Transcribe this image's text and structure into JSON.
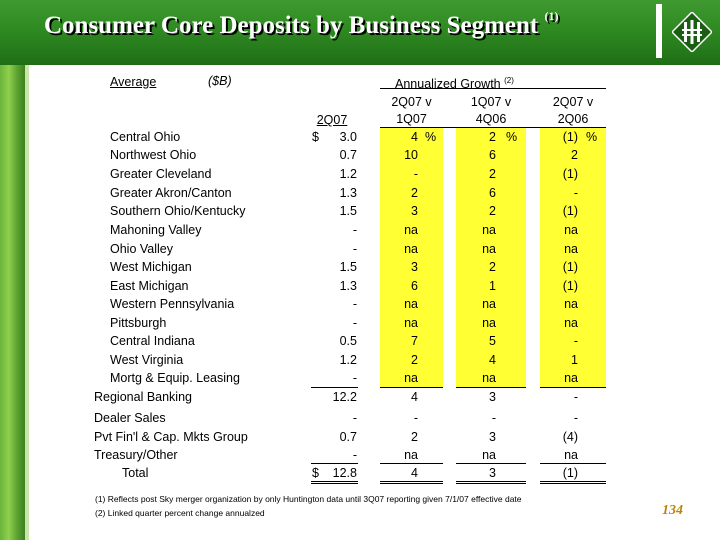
{
  "title": "Consumer Core Deposits by Business Segment",
  "title_note": "(1)",
  "header": {
    "average": "Average",
    "unit": "($B)",
    "growth_label": "Annualized Growth",
    "growth_note": "(2)",
    "col_2q07": "2Q07",
    "col_a_line1": "2Q07 v",
    "col_a_line2": "1Q07",
    "col_b_line1": "1Q07 v",
    "col_b_line2": "4Q06",
    "col_c_line1": "2Q07 v",
    "col_c_line2": "2Q06"
  },
  "rows": [
    {
      "label": "Central Ohio",
      "indent": true,
      "dollar": "$",
      "v": "3.0",
      "a": "4",
      "ap": "%",
      "b": "2",
      "bp": "%",
      "c": "(1)",
      "cp": "%"
    },
    {
      "label": "Northwest Ohio",
      "indent": true,
      "v": "0.7",
      "a": "10",
      "b": "6",
      "c": "2"
    },
    {
      "label": "Greater Cleveland",
      "indent": true,
      "v": "1.2",
      "a": "-",
      "b": "2",
      "c": "(1)"
    },
    {
      "label": "Greater Akron/Canton",
      "indent": true,
      "v": "1.3",
      "a": "2",
      "b": "6",
      "c": "-"
    },
    {
      "label": "Southern Ohio/Kentucky",
      "indent": true,
      "v": "1.5",
      "a": "3",
      "b": "2",
      "c": "(1)"
    },
    {
      "label": "Mahoning Valley",
      "indent": true,
      "v": "-",
      "a": "na",
      "b": "na",
      "c": "na"
    },
    {
      "label": "Ohio Valley",
      "indent": true,
      "v": "-",
      "a": "na",
      "b": "na",
      "c": "na"
    },
    {
      "label": "West Michigan",
      "indent": true,
      "v": "1.5",
      "a": "3",
      "b": "2",
      "c": "(1)"
    },
    {
      "label": "East Michigan",
      "indent": true,
      "v": "1.3",
      "a": "6",
      "b": "1",
      "c": "(1)"
    },
    {
      "label": "Western Pennsylvania",
      "indent": true,
      "v": "-",
      "a": "na",
      "b": "na",
      "c": "na"
    },
    {
      "label": "Pittsburgh",
      "indent": true,
      "v": "-",
      "a": "na",
      "b": "na",
      "c": "na"
    },
    {
      "label": "Central Indiana",
      "indent": true,
      "v": "0.5",
      "a": "7",
      "b": "5",
      "c": "-"
    },
    {
      "label": "West Virginia",
      "indent": true,
      "v": "1.2",
      "a": "2",
      "b": "4",
      "c": "1"
    },
    {
      "label": "Mortg & Equip. Leasing",
      "indent": true,
      "v": "-",
      "a": "na",
      "b": "na",
      "c": "na"
    },
    {
      "label": "Regional Banking",
      "indent": false,
      "v": "12.2",
      "a": "4",
      "b": "3",
      "c": "-"
    },
    {
      "label": "Dealer Sales",
      "indent": false,
      "v": "-",
      "a": "-",
      "b": "-",
      "c": "-"
    },
    {
      "label": "Pvt Fin'l & Cap. Mkts Group",
      "indent": false,
      "v": "0.7",
      "a": "2",
      "b": "3",
      "c": "(4)"
    },
    {
      "label": "Treasury/Other",
      "indent": false,
      "v": "-",
      "a": "na",
      "b": "na",
      "c": "na"
    },
    {
      "label": "Total",
      "indent": "total",
      "dollar": "$",
      "v": "12.8",
      "a": "4",
      "b": "3",
      "c": "(1)"
    }
  ],
  "footnotes": [
    "(1)  Reflects post Sky merger organization by only Huntington data until 3Q07 reporting given 7/1/07 effective date",
    "(2)  Linked quarter percent change annualzed"
  ],
  "page_number": "134",
  "colors": {
    "header_green": "#2f8a22",
    "highlight": "#ffff33",
    "page_number": "#b8860b"
  }
}
